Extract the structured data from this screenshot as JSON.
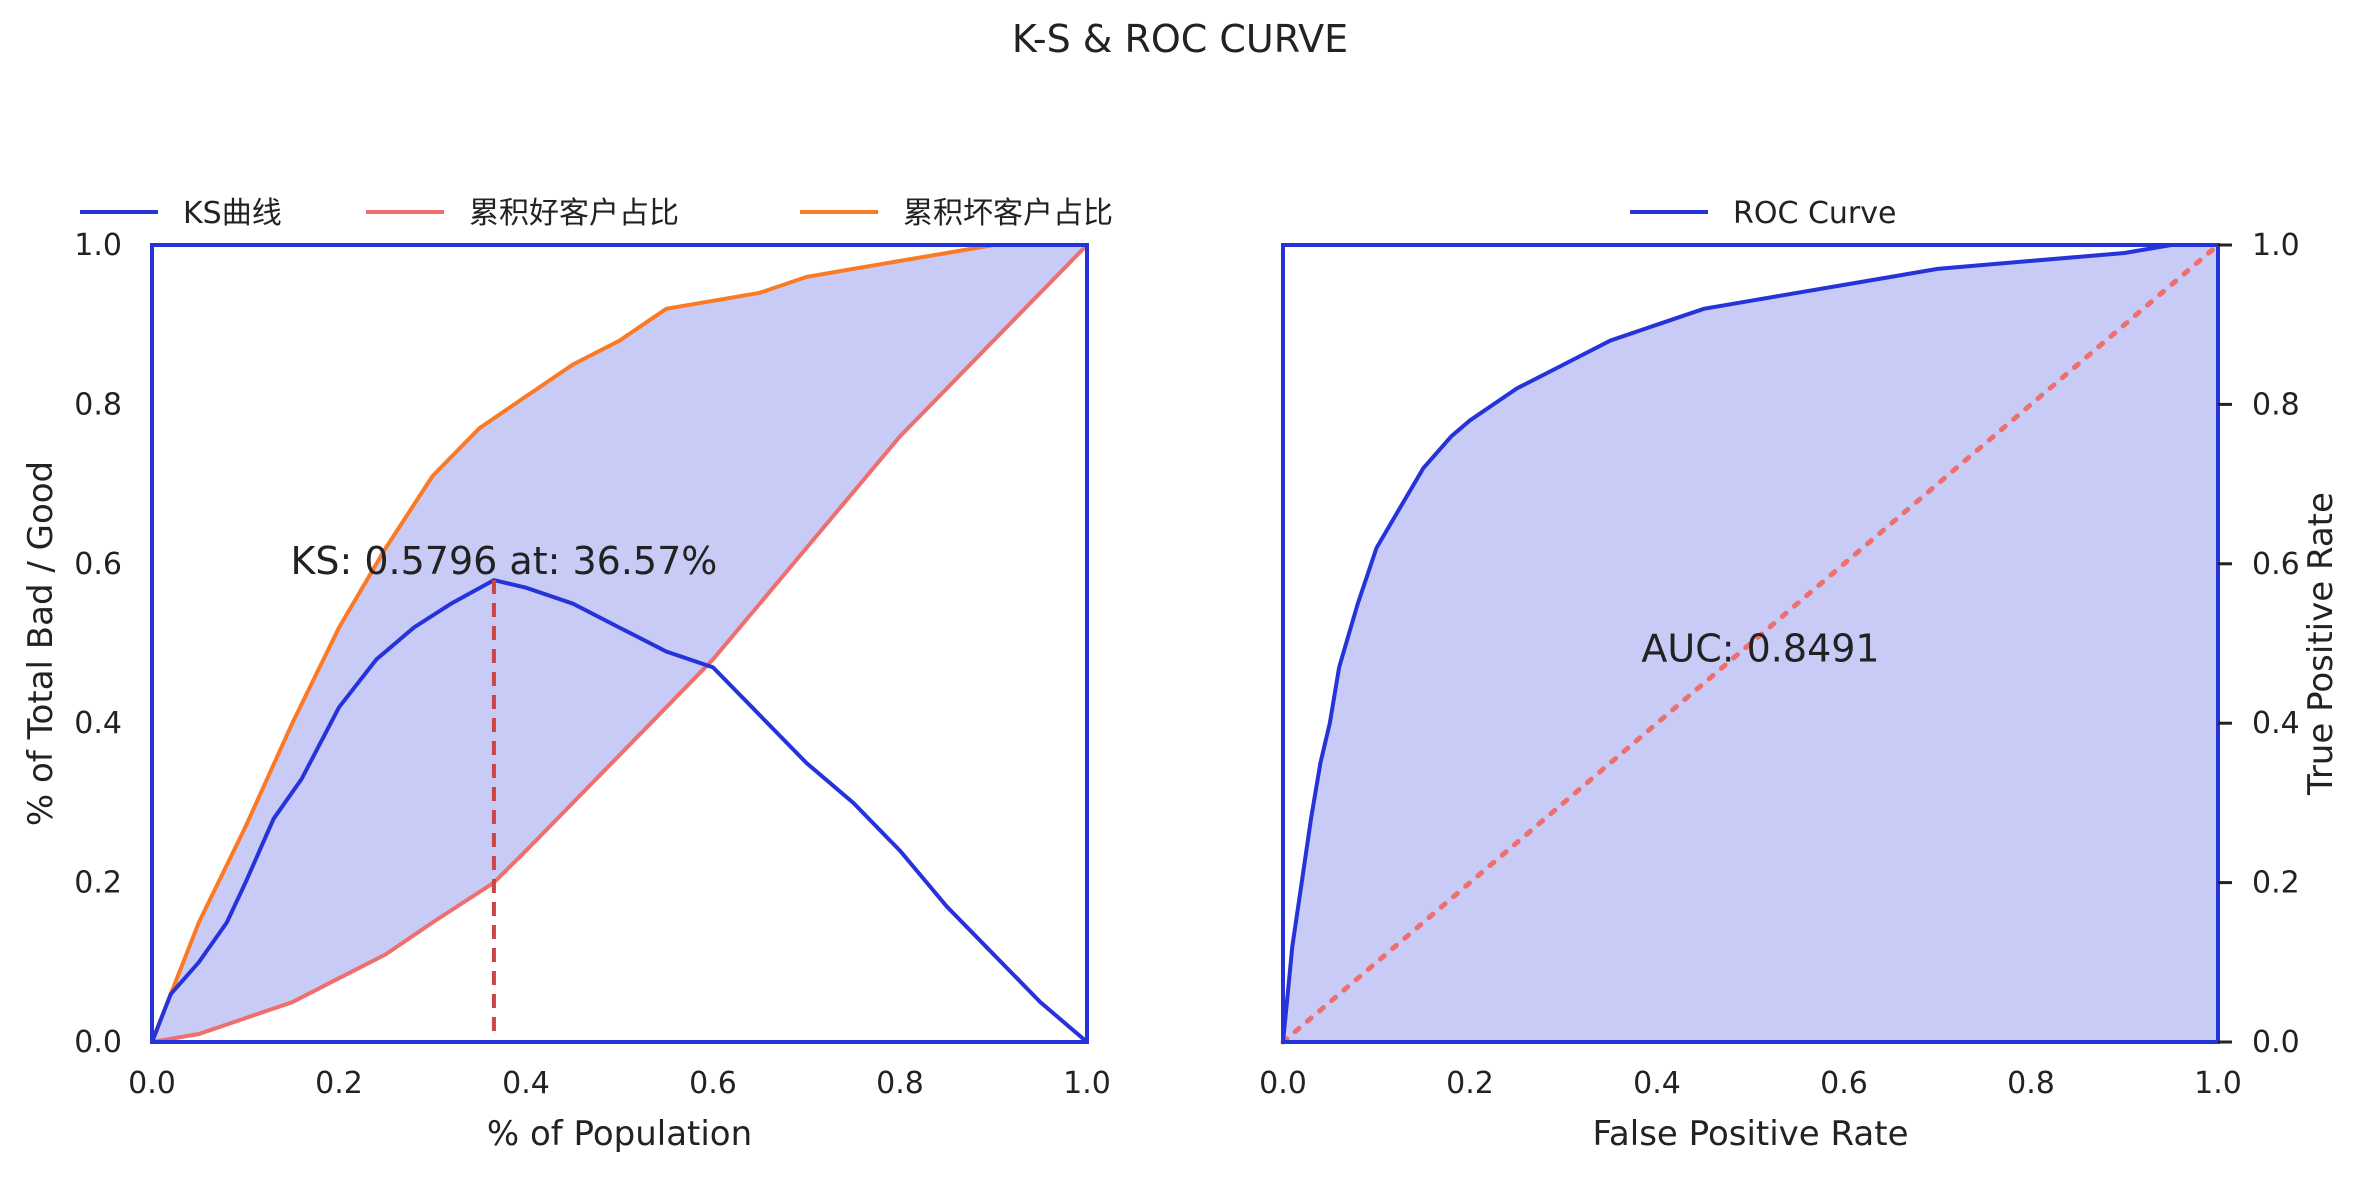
{
  "figure": {
    "title": "K-S & ROC CURVE",
    "colors": {
      "ks": "#2633d9",
      "good": "#ef6e6e",
      "bad": "#fb7a25",
      "fill": "#c7cbf6",
      "ks_marker": "#cc4444",
      "frame": "#2633d9",
      "roc": "#2633d9",
      "diagonal": "#ef6e6e"
    }
  },
  "chart_data": [
    {
      "type": "line",
      "xlabel": "% of Population",
      "ylabel": "% of Total Bad / Good",
      "xlim": [
        0,
        1
      ],
      "ylim": [
        0,
        1
      ],
      "xticks": [
        "0.0",
        "0.2",
        "0.4",
        "0.6",
        "0.8",
        "1.0"
      ],
      "yticks": [
        "0.0",
        "0.2",
        "0.4",
        "0.6",
        "0.8",
        "1.0"
      ],
      "legend": "top, horizontal",
      "grid": false,
      "series": [
        {
          "name": "KS曲线",
          "x": [
            0,
            0.02,
            0.05,
            0.08,
            0.1,
            0.13,
            0.16,
            0.2,
            0.24,
            0.28,
            0.32,
            0.3657,
            0.4,
            0.45,
            0.5,
            0.55,
            0.6,
            0.65,
            0.7,
            0.75,
            0.8,
            0.85,
            0.9,
            0.95,
            1.0
          ],
          "y": [
            0,
            0.06,
            0.1,
            0.15,
            0.2,
            0.28,
            0.33,
            0.42,
            0.48,
            0.52,
            0.55,
            0.5796,
            0.57,
            0.55,
            0.52,
            0.49,
            0.47,
            0.41,
            0.35,
            0.3,
            0.24,
            0.17,
            0.11,
            0.05,
            0.0
          ]
        },
        {
          "name": "累积好客户占比",
          "x": [
            0,
            0.05,
            0.1,
            0.15,
            0.2,
            0.25,
            0.3,
            0.3657,
            0.4,
            0.45,
            0.5,
            0.55,
            0.6,
            0.65,
            0.7,
            0.75,
            0.8,
            0.85,
            0.9,
            0.95,
            1.0
          ],
          "y": [
            0,
            0.01,
            0.03,
            0.05,
            0.08,
            0.11,
            0.15,
            0.2,
            0.24,
            0.3,
            0.36,
            0.42,
            0.48,
            0.55,
            0.62,
            0.69,
            0.76,
            0.82,
            0.88,
            0.94,
            1.0
          ]
        },
        {
          "name": "累积坏客户占比",
          "x": [
            0,
            0.05,
            0.1,
            0.15,
            0.2,
            0.25,
            0.3,
            0.35,
            0.4,
            0.45,
            0.5,
            0.55,
            0.6,
            0.65,
            0.7,
            0.75,
            0.8,
            0.85,
            0.9,
            0.95,
            1.0
          ],
          "y": [
            0,
            0.15,
            0.27,
            0.4,
            0.52,
            0.62,
            0.71,
            0.77,
            0.81,
            0.85,
            0.88,
            0.92,
            0.93,
            0.94,
            0.96,
            0.97,
            0.98,
            0.99,
            1.0,
            1.0,
            1.0
          ]
        }
      ],
      "annotations": [
        {
          "text": "KS: 0.5796 at: 36.57%",
          "x": 0.3657,
          "y": 0.5796
        }
      ]
    },
    {
      "type": "area",
      "xlabel": "False Positive Rate",
      "ylabel": "True Positive Rate",
      "xlim": [
        0,
        1
      ],
      "ylim": [
        0,
        1
      ],
      "xticks": [
        "0.0",
        "0.2",
        "0.4",
        "0.6",
        "0.8",
        "1.0"
      ],
      "yticks": [
        "0.0",
        "0.2",
        "0.4",
        "0.6",
        "0.8",
        "1.0"
      ],
      "legend": "top",
      "grid": false,
      "series": [
        {
          "name": "ROC Curve",
          "x": [
            0,
            0.005,
            0.01,
            0.02,
            0.03,
            0.04,
            0.05,
            0.06,
            0.08,
            0.1,
            0.12,
            0.15,
            0.18,
            0.2,
            0.25,
            0.3,
            0.35,
            0.4,
            0.45,
            0.5,
            0.55,
            0.6,
            0.7,
            0.8,
            0.9,
            0.95,
            1.0
          ],
          "y": [
            0,
            0.06,
            0.12,
            0.2,
            0.28,
            0.35,
            0.4,
            0.47,
            0.55,
            0.62,
            0.66,
            0.72,
            0.76,
            0.78,
            0.82,
            0.85,
            0.88,
            0.9,
            0.92,
            0.93,
            0.94,
            0.95,
            0.97,
            0.98,
            0.99,
            1.0,
            1.0
          ]
        },
        {
          "x": [
            0,
            1
          ],
          "y": [
            0,
            1
          ]
        }
      ],
      "annotations": [
        {
          "text": "AUC: 0.8491",
          "x": 0.5,
          "y": 0.5
        }
      ]
    }
  ]
}
